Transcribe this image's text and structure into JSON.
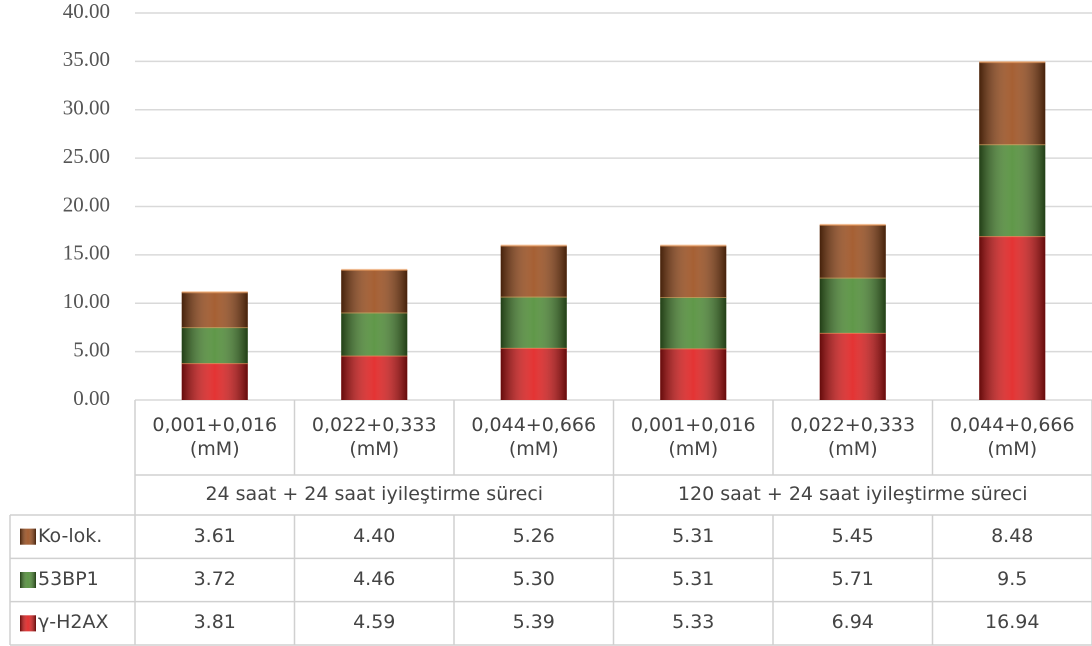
{
  "chart_data": {
    "type": "stacked_bar",
    "categories": [
      "0,001+0,016 (mM)",
      "0,022+0,333 (mM)",
      "0,044+0,666 (mM)",
      "0,001+0,016 (mM)",
      "0,022+0,333 (mM)",
      "0,044+0,666 (mM)"
    ],
    "category_groups": [
      "24 saat + 24 saat iyileştirme süreci",
      "120 saat + 24 saat iyileştirme süreci"
    ],
    "series": [
      {
        "name": "Ko-lok.",
        "color": "#9a4a18",
        "values": [
          3.61,
          4.4,
          5.26,
          5.31,
          5.45,
          8.48
        ],
        "value_labels": [
          "3.61",
          "4.40",
          "5.26",
          "5.31",
          "5.45",
          "8.48"
        ]
      },
      {
        "name": "53BP1",
        "color": "#4a8a30",
        "values": [
          3.72,
          4.46,
          5.3,
          5.31,
          5.71,
          9.5
        ],
        "value_labels": [
          "3.72",
          "4.46",
          "5.30",
          "5.31",
          "5.71",
          "9.5"
        ]
      },
      {
        "name": "γ-H2AX",
        "color": "#e01818",
        "values": [
          3.81,
          4.59,
          5.39,
          5.33,
          6.94,
          16.94
        ],
        "value_labels": [
          "3.81",
          "4.59",
          "5.39",
          "5.33",
          "6.94",
          "16.94"
        ]
      }
    ],
    "ylim": [
      0,
      40
    ],
    "yticks": [
      {
        "value": 0,
        "label": "0.00"
      },
      {
        "value": 5,
        "label": "5.00"
      },
      {
        "value": 10,
        "label": "10.00"
      },
      {
        "value": 15,
        "label": "15.00"
      },
      {
        "value": 20,
        "label": "20.00"
      },
      {
        "value": 25,
        "label": "25.00"
      },
      {
        "value": 30,
        "label": "30.00"
      },
      {
        "value": 35,
        "label": "35.00"
      },
      {
        "value": 40,
        "label": "40.00"
      }
    ],
    "grid": true
  }
}
